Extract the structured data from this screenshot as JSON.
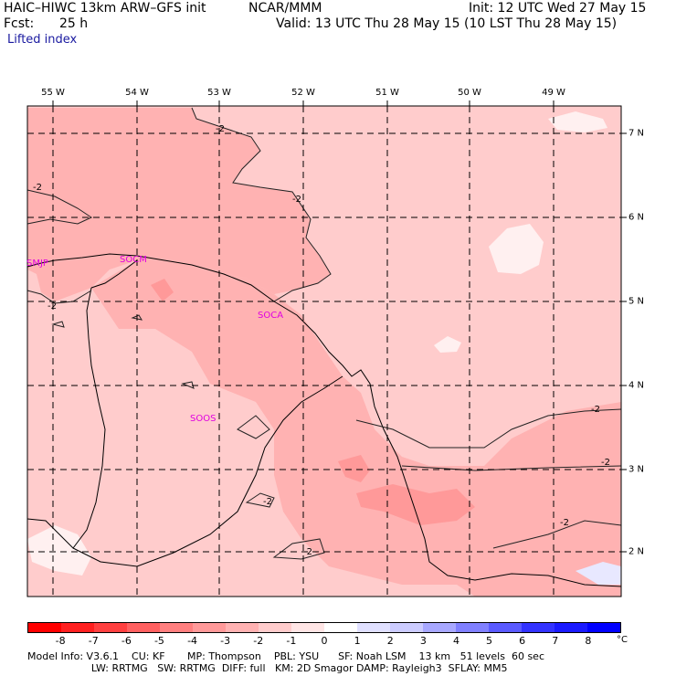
{
  "header": {
    "model_title": "HAIC–HIWC 13km ARW–GFS init",
    "org": "NCAR/MMM",
    "fcst_label": "Fcst:",
    "fcst_value": "25 h",
    "init": "Init: 12 UTC Wed 27 May 15",
    "valid": "Valid: 13 UTC Thu 28 May 15 (10 LST Thu 28 May 15)",
    "field": "Lifted index"
  },
  "map": {
    "lon_labels": [
      "55 W",
      "54 W",
      "53 W",
      "52 W",
      "51 W",
      "50 W",
      "49 W"
    ],
    "lat_labels": [
      "7 N",
      "6 N",
      "5 N",
      "4 N",
      "3 N",
      "2 N"
    ],
    "stations": [
      "SMJP",
      "SOCM",
      "SOCA",
      "SOOS"
    ],
    "contour_label": "-2",
    "colors": {
      "background_light": "#ffcccc",
      "mid_pink": "#ffb2b2",
      "darker_pink": "#ff9999",
      "white_patch": "#fff0f0",
      "grid": "#000000",
      "station": "#e000e0"
    }
  },
  "colorbar": {
    "ticks": [
      "-8",
      "-7",
      "-6",
      "-5",
      "-4",
      "-3",
      "-2",
      "-1",
      "0",
      "1",
      "2",
      "3",
      "4",
      "5",
      "6",
      "7",
      "8"
    ],
    "unit": "°C",
    "colors": [
      "#ff0000",
      "#ff2020",
      "#ff4040",
      "#ff6060",
      "#ff7f7f",
      "#ff9999",
      "#ffb2b2",
      "#ffcccc",
      "#ffe5e5",
      "#ffffff",
      "#e0e0ff",
      "#ccccff",
      "#a8a8ff",
      "#8080ff",
      "#5a5aff",
      "#3333ff",
      "#1a1aff",
      "#0000ff"
    ]
  },
  "footer": {
    "line1": "Model Info: V3.6.1    CU: KF       MP: Thompson    PBL: YSU      SF: Noah LSM    13 km   51 levels  60 sec",
    "line2": "                    LW: RRTMG   SW: RRTMG  DIFF: full   KM: 2D Smagor DAMP: Rayleigh3  SFLAY: MM5"
  }
}
